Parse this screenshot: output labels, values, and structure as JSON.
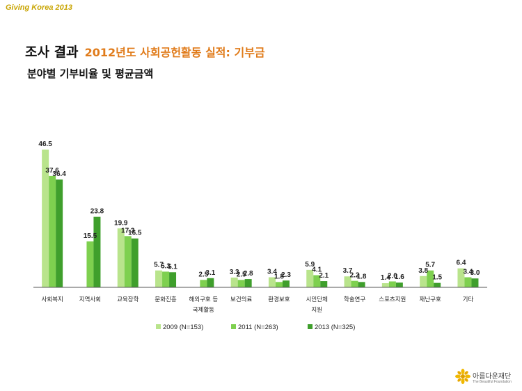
{
  "header": {
    "brand": "Giving Korea 2013",
    "title_main": "조사 결과",
    "title_accent": "2012년도 사회공헌활동 실적: 기부금",
    "subtitle": "분야별 기부비율 및 평균금액"
  },
  "colors": {
    "series": [
      "#b9e48c",
      "#7ed04f",
      "#3f9f2c"
    ],
    "brand_text": "#c8a400",
    "title_accent": "#e07b1a"
  },
  "chart_data": {
    "type": "bar",
    "categories": [
      "사회복지",
      "지역사회",
      "교육장학",
      "문화진흥",
      "해외구호 등 국제활동",
      "보건의료",
      "환경보호",
      "시민단체 지원",
      "학술연구",
      "스포츠지원",
      "재난구호",
      "기타"
    ],
    "category_lines": [
      [
        "사회복지"
      ],
      [
        "지역사회"
      ],
      [
        "교육장학"
      ],
      [
        "문화진흥"
      ],
      [
        "해외구호 등",
        "국제활동"
      ],
      [
        "보건의료"
      ],
      [
        "환경보호"
      ],
      [
        "시민단체",
        "지원"
      ],
      [
        "학술연구"
      ],
      [
        "스포츠지원"
      ],
      [
        "재난구호"
      ],
      [
        "기타"
      ]
    ],
    "series": [
      {
        "name": "2009 (N=153)",
        "values": [
          46.5,
          null,
          19.9,
          5.7,
          null,
          3.3,
          3.4,
          5.9,
          3.7,
          1.4,
          3.8,
          6.4
        ]
      },
      {
        "name": "2011 (N=263)",
        "values": [
          37.6,
          15.5,
          17.3,
          5.3,
          2.5,
          2.5,
          1.8,
          4.1,
          2.2,
          2.0,
          5.7,
          3.4
        ]
      },
      {
        "name": "2013 (N=325)",
        "values": [
          36.4,
          23.8,
          16.5,
          5.1,
          3.1,
          2.8,
          2.3,
          2.1,
          1.8,
          1.6,
          1.5,
          3.0
        ]
      }
    ],
    "ylim": [
      0,
      50
    ],
    "grid": false,
    "legend": "bottom"
  },
  "footer": {
    "logo_name": "아름다운재단",
    "logo_sub": "The Beautiful Foundation"
  }
}
